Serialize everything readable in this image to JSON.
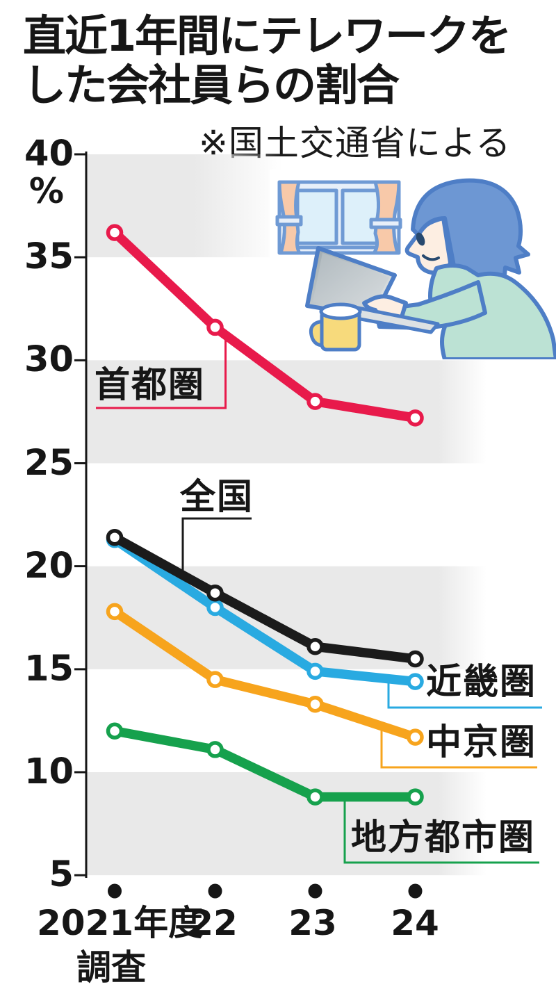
{
  "title": {
    "line1": "直近1年間にテレワークを",
    "line2": "した会社員らの割合"
  },
  "source_note": "※国土交通省による",
  "y_axis": {
    "unit_label": "%",
    "tick_labels": [
      "40",
      "35",
      "30",
      "25",
      "20",
      "15",
      "10",
      "5"
    ],
    "tick_values": [
      40,
      35,
      30,
      25,
      20,
      15,
      10,
      5
    ]
  },
  "x_axis": {
    "tick_labels": [
      "2021年度",
      "22",
      "23",
      "24"
    ],
    "first_tick_second_line": "調査"
  },
  "chart_data": {
    "type": "line",
    "title": "直近1年間にテレワークをした会社員らの割合",
    "source": "※国土交通省による",
    "x_categories": [
      "2021年度調査",
      "22",
      "23",
      "24"
    ],
    "ylabel": "%",
    "ylim": [
      5,
      40
    ],
    "ytick_step": 5,
    "grid": "alternating horizontal gray bands (40-35, 30-25, 20-15, 10-5)",
    "legend_position": "inline labels with leader lines",
    "marker": "open white circle",
    "band_color": "#e9e9e9",
    "series": [
      {
        "key": "shutoken",
        "name": "首都圏",
        "color": "#e81a4b",
        "values": [
          36.2,
          31.6,
          28.0,
          27.2
        ]
      },
      {
        "key": "zenkoku",
        "name": "全国",
        "color": "#1b1b1b",
        "values": [
          21.4,
          18.7,
          16.1,
          15.5
        ]
      },
      {
        "key": "kinki",
        "name": "近畿圏",
        "color": "#29aae1",
        "values": [
          21.3,
          18.0,
          14.9,
          14.4
        ]
      },
      {
        "key": "chukyo",
        "name": "中京圏",
        "color": "#f7a41d",
        "values": [
          17.8,
          14.5,
          13.3,
          11.7
        ]
      },
      {
        "key": "chiho",
        "name": "地方都市圏",
        "color": "#16a14d",
        "values": [
          12.0,
          11.1,
          8.8,
          8.8
        ]
      }
    ]
  }
}
